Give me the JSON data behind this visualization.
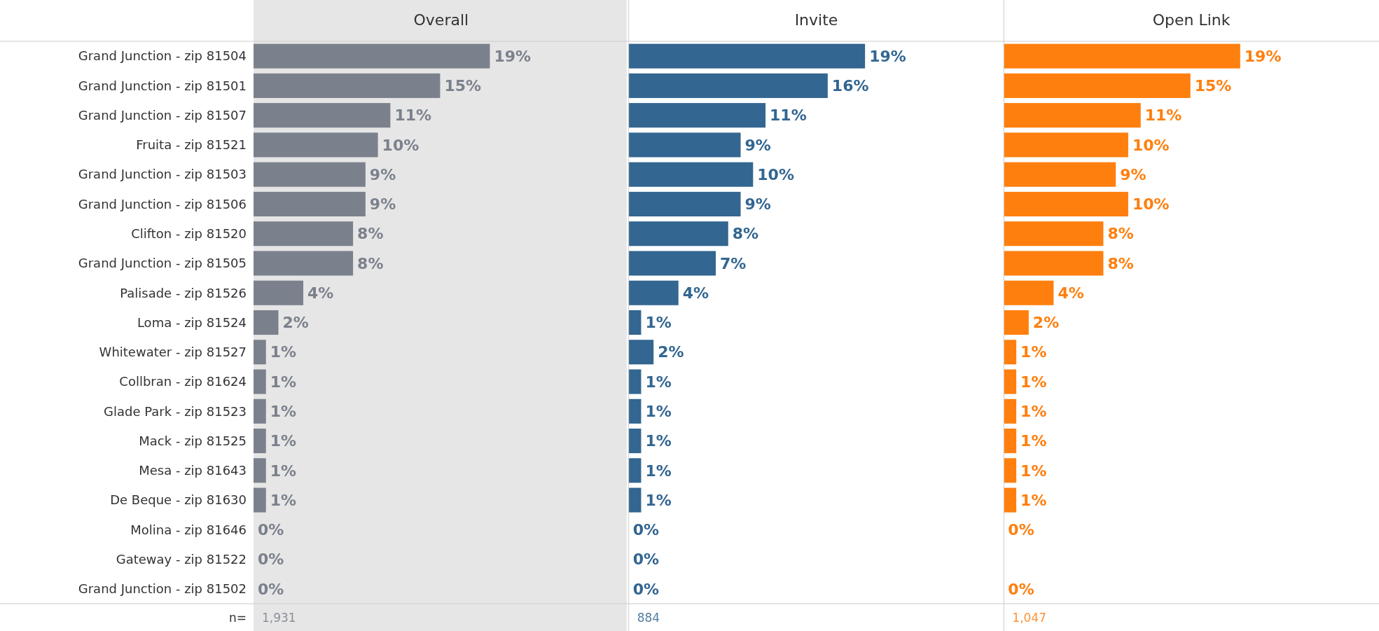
{
  "chart_data": [
    {
      "type": "bar",
      "orientation": "horizontal",
      "title": "Overall",
      "tick_labels": "y",
      "categories": [
        "Grand Junction - zip 81504",
        "Grand Junction - zip 81501",
        "Grand Junction - zip 81507",
        "Fruita - zip 81521",
        "Grand Junction - zip 81503",
        "Grand Junction - zip 81506",
        "Clifton - zip 81520",
        "Grand Junction - zip 81505",
        "Palisade - zip 81526",
        "Loma - zip 81524",
        "Whitewater - zip 81527",
        "Collbran - zip 81624",
        "Glade Park - zip 81523",
        "Mack - zip 81525",
        "Mesa - zip 81643",
        "De Beque - zip 81630",
        "Molina - zip 81646",
        "Gateway - zip 81522",
        "Grand Junction - zip 81502"
      ],
      "series": [
        {
          "color": "#7b818c",
          "values": [
            19,
            15,
            11,
            10,
            9,
            9,
            8,
            8,
            4,
            2,
            1,
            1,
            1,
            1,
            1,
            1,
            0,
            0,
            0
          ],
          "value_labels": [
            "19%",
            "15%",
            "11%",
            "10%",
            "9%",
            "9%",
            "8%",
            "8%",
            "4%",
            "2%",
            "1%",
            "1%",
            "1%",
            "1%",
            "1%",
            "1%",
            "0%",
            "0%",
            "0%"
          ]
        }
      ],
      "bands": [
        {
          "axis": "x",
          "from": 0,
          "to": 30,
          "color": "#e6e6e6"
        }
      ],
      "annotations": [
        "n=",
        "1,931"
      ]
    },
    {
      "type": "bar",
      "orientation": "horizontal",
      "title": "Invite",
      "tick_labels": false,
      "categories": [
        null,
        null,
        null,
        null,
        null,
        null,
        null,
        null,
        null,
        null,
        null,
        null,
        null,
        null,
        null,
        null,
        null,
        null,
        null
      ],
      "series": [
        {
          "color": "#336691",
          "values": [
            19,
            16,
            11,
            9,
            10,
            9,
            8,
            7,
            4,
            1,
            2,
            1,
            1,
            1,
            1,
            1,
            0,
            0,
            0
          ],
          "value_labels": [
            "19%",
            "16%",
            "11%",
            "9%",
            "10%",
            "9%",
            "8%",
            "7%",
            "4%",
            "1%",
            "2%",
            "1%",
            "1%",
            "1%",
            "1%",
            "1%",
            "0%",
            "0%",
            "0%"
          ]
        }
      ],
      "annotations": [
        "884"
      ]
    },
    {
      "type": "bar",
      "orientation": "horizontal",
      "title": "Open Link",
      "tick_labels": false,
      "categories": [
        null,
        null,
        null,
        null,
        null,
        null,
        null,
        null,
        null,
        null,
        null,
        null,
        null,
        null,
        null,
        null,
        null,
        null,
        null
      ],
      "series": [
        {
          "color": "#ff7f0e",
          "values": [
            19,
            15,
            11,
            10,
            9,
            10,
            8,
            8,
            4,
            2,
            1,
            1,
            1,
            1,
            1,
            1,
            0,
            null,
            0
          ],
          "value_labels": [
            "19%",
            "15%",
            "11%",
            "10%",
            "9%",
            "10%",
            "8%",
            "8%",
            "4%",
            "2%",
            "1%",
            "1%",
            "1%",
            "1%",
            "1%",
            "1%",
            "0%",
            null,
            "0%"
          ]
        }
      ],
      "annotations": [
        "1,047"
      ]
    }
  ]
}
